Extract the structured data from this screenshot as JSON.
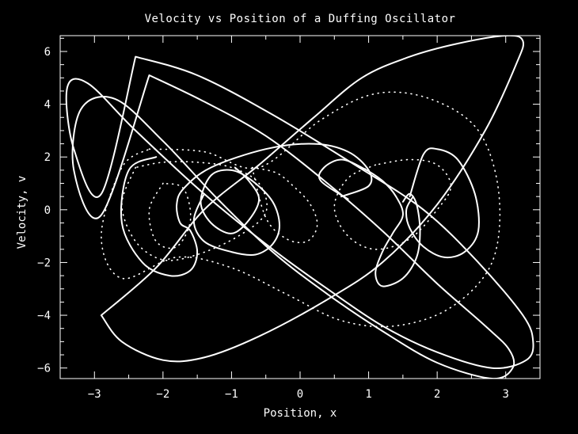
{
  "chart_data": {
    "type": "line",
    "title": "Velocity vs Position of a Duffing Oscillator",
    "xlabel": "Position, x",
    "ylabel": "Velocity, v",
    "xlim": [
      -3.5,
      3.5
    ],
    "ylim": [
      -6.4,
      6.6
    ],
    "xticks": [
      -3,
      -2,
      -1,
      0,
      1,
      2,
      3
    ],
    "yticks": [
      -6,
      -4,
      -2,
      0,
      2,
      4,
      6
    ],
    "grid": false,
    "background_color": "#000000",
    "line_color": "#ffffff",
    "series": [
      {
        "style": "solid",
        "x": [
          -2.4,
          -1.5,
          -0.4,
          0.8,
          1.8,
          2.6,
          3.25,
          3.4,
          3.3,
          2.8,
          2.0,
          1.2,
          0.4,
          -0.4,
          -1.4,
          -2.4,
          -3.1,
          -3.4,
          -3.3,
          -2.9,
          -2.4
        ],
        "y": [
          5.8,
          5.1,
          3.6,
          1.7,
          0.0,
          -2.0,
          -4.0,
          -5.0,
          -5.7,
          -6.0,
          -5.4,
          -4.4,
          -3.0,
          -1.5,
          0.6,
          3.0,
          4.8,
          4.6,
          2.3,
          0.6,
          5.8
        ]
      },
      {
        "style": "solid",
        "x": [
          -2.2,
          -1.4,
          -0.5,
          0.4,
          1.2,
          2.0,
          2.7,
          3.05,
          3.1,
          2.8,
          2.0,
          1.2,
          0.4,
          -0.4,
          -1.2,
          -2.0,
          -2.7,
          -3.2,
          -3.3,
          -2.9,
          -2.2
        ],
        "y": [
          5.1,
          4.1,
          2.8,
          1.0,
          -0.8,
          -2.8,
          -4.4,
          -5.3,
          -6.0,
          -6.4,
          -5.8,
          -4.6,
          -3.2,
          -1.6,
          0.4,
          2.6,
          4.2,
          3.8,
          1.5,
          -0.2,
          5.1
        ]
      },
      {
        "style": "solid",
        "x": [
          -2.9,
          -2.6,
          -2.0,
          -1.4,
          -0.6,
          0.4,
          1.2,
          2.0,
          2.7,
          3.15,
          3.25,
          3.0,
          2.3,
          1.6,
          0.9,
          0.2,
          -0.6,
          -1.4,
          -2.1,
          -2.9
        ],
        "y": [
          -4.0,
          -5.0,
          -5.7,
          -5.6,
          -4.8,
          -3.4,
          -2.0,
          0.2,
          3.0,
          5.5,
          6.4,
          6.6,
          6.3,
          5.8,
          5.0,
          3.5,
          1.7,
          0.0,
          -2.2,
          -4.0
        ]
      },
      {
        "style": "solid",
        "x": [
          -2.1,
          -2.5,
          -2.6,
          -2.3,
          -1.9,
          -1.6,
          -1.5,
          -1.6,
          -1.75,
          -1.8,
          -1.7,
          -1.3,
          -0.5,
          0.2,
          0.7,
          1.0,
          1.0,
          0.6
        ],
        "y": [
          2.0,
          1.5,
          -0.5,
          -2.0,
          -2.5,
          -2.3,
          -1.6,
          -0.8,
          -0.5,
          0.2,
          0.8,
          1.6,
          2.3,
          2.5,
          2.2,
          1.5,
          0.9,
          0.5
        ]
      },
      {
        "style": "solid",
        "x": [
          0.7,
          0.3,
          0.35,
          0.6,
          0.9,
          1.2,
          1.4,
          1.5,
          1.35,
          1.2,
          1.1,
          1.2,
          1.5,
          1.7,
          1.75,
          1.7,
          1.6,
          1.5
        ],
        "y": [
          0.4,
          1.1,
          1.6,
          1.9,
          1.6,
          1.1,
          0.5,
          -0.2,
          -0.9,
          -1.6,
          -2.4,
          -2.9,
          -2.6,
          -1.8,
          -0.8,
          0.2,
          0.6,
          0.3
        ]
      },
      {
        "style": "solid",
        "x": [
          1.65,
          1.55,
          1.6,
          1.8,
          2.1,
          2.4,
          2.6,
          2.55,
          2.3,
          2.0,
          1.8,
          1.6
        ],
        "y": [
          0.5,
          0.0,
          -0.7,
          -1.4,
          -1.8,
          -1.6,
          -0.8,
          0.6,
          1.9,
          2.3,
          2.1,
          0.5
        ]
      },
      {
        "style": "solid",
        "x": [
          -1.4,
          -1.55,
          -1.4,
          -1.0,
          -0.65,
          -0.4,
          -0.3,
          -0.4,
          -0.7,
          -1.0,
          -1.3,
          -1.45,
          -1.3,
          -1.0,
          -0.75,
          -0.6,
          -0.75,
          -0.95
        ],
        "y": [
          0.6,
          -0.4,
          -1.2,
          -1.6,
          -1.7,
          -1.3,
          -0.6,
          0.3,
          1.1,
          1.5,
          1.3,
          0.3,
          -0.5,
          -0.9,
          -0.4,
          0.4,
          1.1,
          1.6
        ]
      },
      {
        "style": "dotted",
        "x": [
          -2.2,
          -1.4,
          -0.6,
          0.3,
          1.1,
          1.9,
          2.6,
          2.9,
          2.8,
          2.2,
          1.4,
          0.6,
          -0.2,
          -1.0,
          -1.8,
          -2.6,
          -2.9,
          -2.6,
          -2.2
        ],
        "y": [
          2.3,
          2.2,
          1.6,
          3.4,
          4.4,
          4.2,
          3.0,
          0.6,
          -2.0,
          -3.7,
          -4.4,
          -4.2,
          -3.2,
          -2.2,
          -1.8,
          -2.6,
          -1.0,
          1.6,
          2.3
        ]
      },
      {
        "style": "dotted",
        "x": [
          -2.4,
          -2.6,
          -2.4,
          -2.0,
          -1.5,
          -0.9,
          -0.5,
          -0.6,
          -1.0,
          -1.5,
          -2.0,
          -2.4
        ],
        "y": [
          1.6,
          0.2,
          -1.2,
          -1.9,
          -1.7,
          -1.0,
          -0.1,
          1.0,
          1.6,
          1.8,
          1.8,
          1.6
        ]
      },
      {
        "style": "dotted",
        "x": [
          1.1,
          0.7,
          0.5,
          0.7,
          1.1,
          1.6,
          2.0,
          2.2,
          2.0,
          1.6,
          1.1
        ],
        "y": [
          1.7,
          1.2,
          0.1,
          -1.0,
          -1.5,
          -1.1,
          0.0,
          0.9,
          1.7,
          1.9,
          1.7
        ]
      },
      {
        "style": "dotted",
        "x": [
          -2.0,
          -2.2,
          -2.1,
          -1.8,
          -1.6,
          -1.7,
          -2.0
        ],
        "y": [
          1.0,
          0.0,
          -1.2,
          -1.4,
          -0.4,
          0.8,
          1.0
        ]
      },
      {
        "style": "dotted",
        "x": [
          -0.7,
          -0.35,
          -0.1,
          0.15,
          0.25,
          0.1,
          -0.2,
          -0.5,
          -0.7
        ],
        "y": [
          1.6,
          1.4,
          0.9,
          0.2,
          -0.6,
          -1.2,
          -1.1,
          -0.3,
          1.6
        ]
      }
    ]
  }
}
